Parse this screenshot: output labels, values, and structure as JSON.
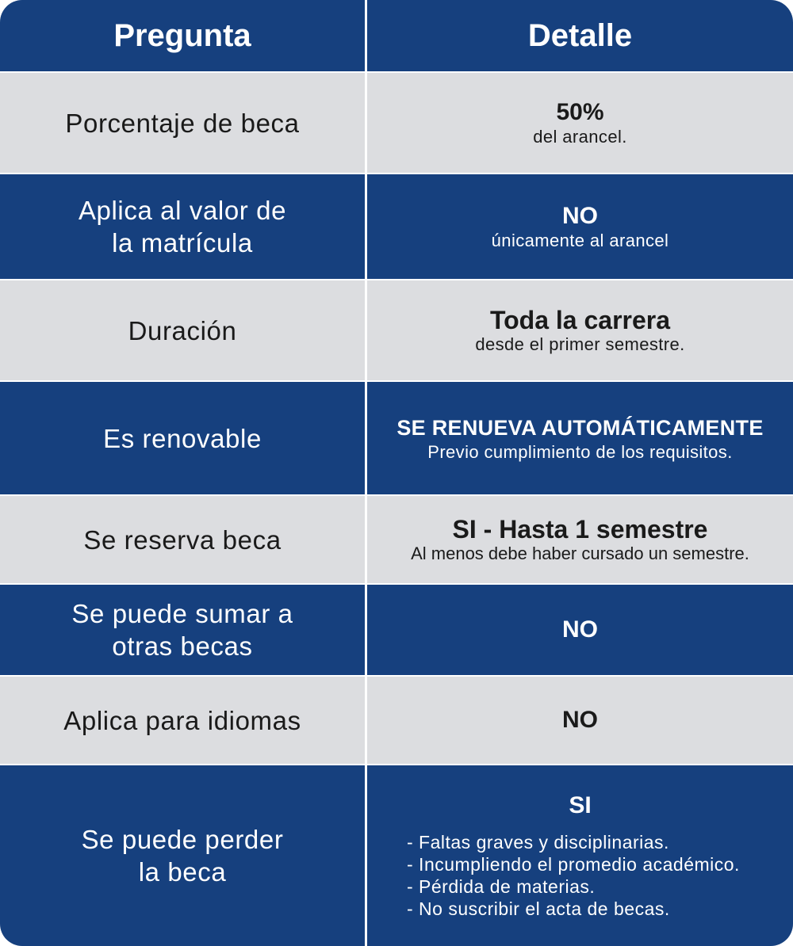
{
  "header": {
    "col1": "Pregunta",
    "col2": "Detalle"
  },
  "rows": [
    {
      "question": [
        "Porcentaje de beca"
      ],
      "main": "50%",
      "sub": "del arancel."
    },
    {
      "question": [
        "Aplica al valor de",
        "la matrícula"
      ],
      "main": "NO",
      "sub": "únicamente al arancel"
    },
    {
      "question": [
        "Duración"
      ],
      "main": "Toda la carrera",
      "sub": "desde el primer semestre."
    },
    {
      "question": [
        "Es renovable"
      ],
      "main": "SE RENUEVA AUTOMÁTICAMENTE",
      "sub": "Previo cumplimiento de los requisitos."
    },
    {
      "question": [
        "Se reserva beca"
      ],
      "main": "SI - Hasta 1 semestre",
      "sub": "Al menos debe haber cursado un semestre."
    },
    {
      "question": [
        "Se puede sumar a",
        "otras becas"
      ],
      "main": "NO"
    },
    {
      "question": [
        "Aplica para idiomas"
      ],
      "main": "NO"
    },
    {
      "question": [
        "Se puede perder",
        "la beca"
      ],
      "main": "SI",
      "bullets": [
        "- Faltas graves y disciplinarias.",
        "- Incumpliendo el promedio académico.",
        "- Pérdida de materias.",
        "- No suscribir el acta de becas."
      ]
    }
  ],
  "colors": {
    "blue": "#16407e",
    "gray": "#dcdde0",
    "divider": "#ffffff"
  }
}
